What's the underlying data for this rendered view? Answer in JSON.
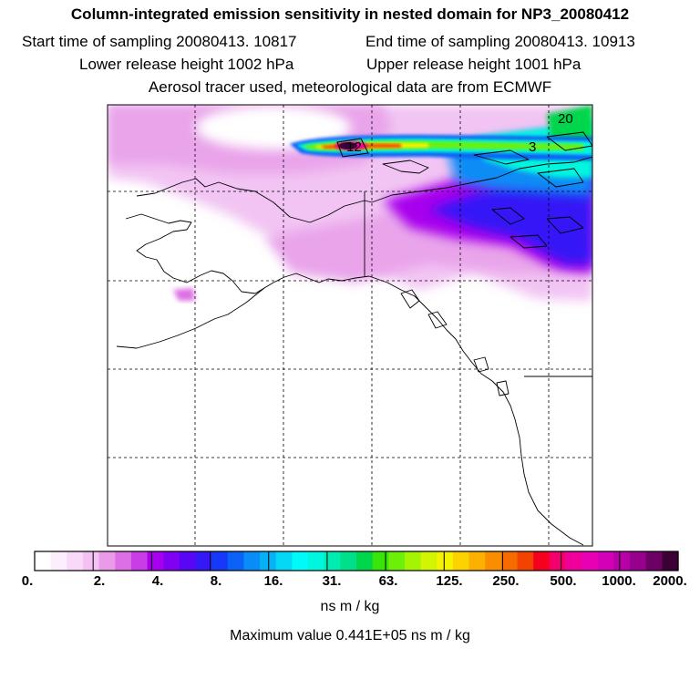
{
  "header": {
    "title": "Column-integrated emission sensitivity in nested domain for NP3_20080412",
    "start_label": "Start time of sampling 20080413. 10817",
    "end_label": "End time of sampling 20080413. 10913",
    "lower_label": "Lower release height 1002 hPa",
    "upper_label": "Upper release height 1001 hPa",
    "tracer_label": "Aerosol tracer used, meteorological data are from ECMWF"
  },
  "map_labels": {
    "label_20": "20",
    "label_12": "12",
    "label_3": "3"
  },
  "colorbar": {
    "ticks": [
      "0.",
      "2.",
      "4.",
      "8.",
      "16.",
      "31.",
      "63.",
      "125.",
      "250.",
      "500.",
      "1000.",
      "2000."
    ],
    "colors": [
      "#ffffff",
      "#fdeefd",
      "#f9d9f9",
      "#f3c1f4",
      "#e99be9",
      "#dd6fe4",
      "#c93de6",
      "#a800ee",
      "#7f00f2",
      "#5a06f5",
      "#3419f6",
      "#1539f6",
      "#0a62f6",
      "#0a8cf6",
      "#06b2f4",
      "#04d8f2",
      "#00fafa",
      "#00f6de",
      "#00ecb3",
      "#00e08a",
      "#00d64c",
      "#39e40a",
      "#6cf00a",
      "#a4f404",
      "#d2f405",
      "#f6f200",
      "#fcd200",
      "#fcb000",
      "#f88e00",
      "#f66a00",
      "#f44200",
      "#f60020",
      "#f4006c",
      "#f0009a",
      "#e800b4",
      "#d400b8",
      "#b800a8",
      "#96008c",
      "#6c0064",
      "#3c0036"
    ],
    "unit": "ns m / kg"
  },
  "max_value": "Maximum value  0.441E+05 ns m / kg"
}
